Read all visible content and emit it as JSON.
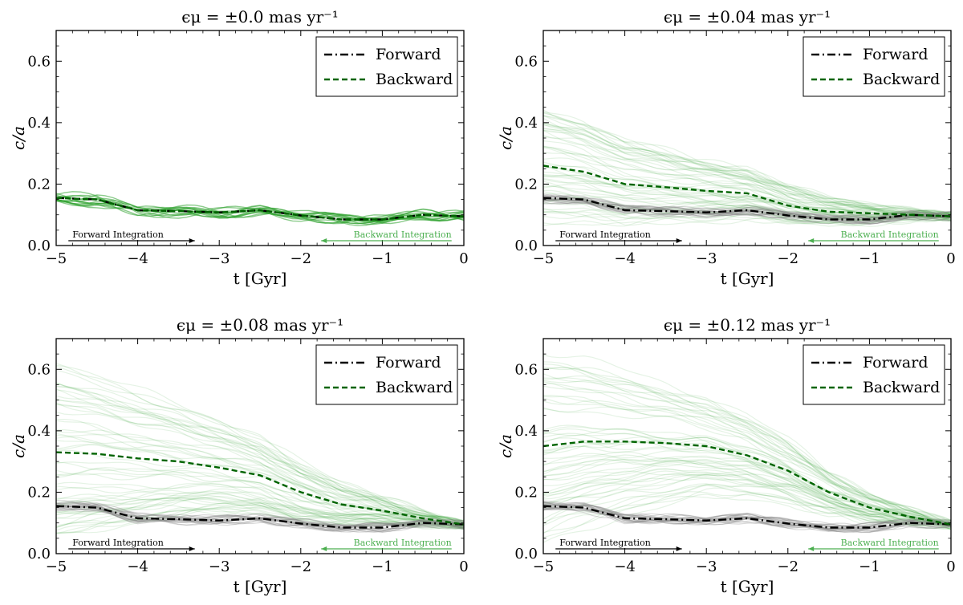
{
  "colors": {
    "forward": "#000000",
    "backward": "#006400",
    "forward_traces": "#808080",
    "backward_traces": "#2ca02c",
    "backward_annotation": "#4caf50"
  },
  "chart_data": [
    {
      "type": "line",
      "title": "ϵμ = ±0.0 mas yr⁻¹",
      "xlabel": "t [Gyr]",
      "ylabel": "c/a",
      "xlim": [
        -5,
        0
      ],
      "ylim": [
        0,
        0.7
      ],
      "xticks": [
        "−5",
        "−4",
        "−3",
        "−2",
        "−1",
        "0"
      ],
      "yticks": [
        "0.0",
        "0.2",
        "0.4",
        "0.6"
      ],
      "legend": {
        "position": "top-right",
        "entries": [
          "Forward",
          "Backward"
        ]
      },
      "annotations": {
        "forward": "Forward Integration",
        "backward": "Backward Integration"
      },
      "series": [
        {
          "name": "Forward",
          "style": "dashdot",
          "x": [
            -5,
            -4.5,
            -4,
            -3.5,
            -3,
            -2.5,
            -2,
            -1.5,
            -1,
            -0.5,
            0
          ],
          "y": [
            0.155,
            0.15,
            0.115,
            0.112,
            0.108,
            0.115,
            0.098,
            0.085,
            0.085,
            0.1,
            0.095
          ]
        },
        {
          "name": "Backward",
          "style": "dashed",
          "x": [
            -5,
            -4.5,
            -4,
            -3.5,
            -3,
            -2.5,
            -2,
            -1.5,
            -1,
            -0.5,
            0
          ],
          "y": [
            0.155,
            0.15,
            0.115,
            0.112,
            0.108,
            0.115,
            0.098,
            0.085,
            0.085,
            0.1,
            0.095
          ]
        }
      ]
    },
    {
      "type": "line",
      "title": "ϵμ = ±0.04 mas yr⁻¹",
      "xlabel": "t [Gyr]",
      "ylabel": "c/a",
      "xlim": [
        -5,
        0
      ],
      "ylim": [
        0,
        0.7
      ],
      "xticks": [
        "−5",
        "−4",
        "−3",
        "−2",
        "−1",
        "0"
      ],
      "yticks": [
        "0.0",
        "0.2",
        "0.4",
        "0.6"
      ],
      "legend": {
        "position": "top-right",
        "entries": [
          "Forward",
          "Backward"
        ]
      },
      "annotations": {
        "forward": "Forward Integration",
        "backward": "Backward Integration"
      },
      "series": [
        {
          "name": "Forward",
          "style": "dashdot",
          "x": [
            -5,
            -4.5,
            -4,
            -3.5,
            -3,
            -2.5,
            -2,
            -1.5,
            -1,
            -0.5,
            0
          ],
          "y": [
            0.155,
            0.15,
            0.115,
            0.112,
            0.108,
            0.115,
            0.098,
            0.085,
            0.085,
            0.1,
            0.095
          ]
        },
        {
          "name": "Backward",
          "style": "dashed",
          "x": [
            -5,
            -4.5,
            -4,
            -3.5,
            -3,
            -2.5,
            -2,
            -1.5,
            -1,
            -0.5,
            0
          ],
          "y": [
            0.26,
            0.24,
            0.2,
            0.19,
            0.178,
            0.17,
            0.13,
            0.11,
            0.105,
            0.1,
            0.095
          ]
        }
      ]
    },
    {
      "type": "line",
      "title": "ϵμ = ±0.08 mas yr⁻¹",
      "xlabel": "t [Gyr]",
      "ylabel": "c/a",
      "xlim": [
        -5,
        0
      ],
      "ylim": [
        0,
        0.7
      ],
      "xticks": [
        "−5",
        "−4",
        "−3",
        "−2",
        "−1",
        "0"
      ],
      "yticks": [
        "0.0",
        "0.2",
        "0.4",
        "0.6"
      ],
      "legend": {
        "position": "top-right",
        "entries": [
          "Forward",
          "Backward"
        ]
      },
      "annotations": {
        "forward": "Forward Integration",
        "backward": "Backward Integration"
      },
      "series": [
        {
          "name": "Forward",
          "style": "dashdot",
          "x": [
            -5,
            -4.5,
            -4,
            -3.5,
            -3,
            -2.5,
            -2,
            -1.5,
            -1,
            -0.5,
            0
          ],
          "y": [
            0.155,
            0.15,
            0.115,
            0.112,
            0.108,
            0.115,
            0.098,
            0.085,
            0.085,
            0.1,
            0.095
          ]
        },
        {
          "name": "Backward",
          "style": "dashed",
          "x": [
            -5,
            -4.5,
            -4,
            -3.5,
            -3,
            -2.5,
            -2,
            -1.5,
            -1,
            -0.5,
            0
          ],
          "y": [
            0.33,
            0.325,
            0.31,
            0.3,
            0.28,
            0.255,
            0.2,
            0.16,
            0.14,
            0.115,
            0.095
          ]
        }
      ]
    },
    {
      "type": "line",
      "title": "ϵμ = ±0.12 mas yr⁻¹",
      "xlabel": "t [Gyr]",
      "ylabel": "c/a",
      "xlim": [
        -5,
        0
      ],
      "ylim": [
        0,
        0.7
      ],
      "xticks": [
        "−5",
        "−4",
        "−3",
        "−2",
        "−1",
        "0"
      ],
      "yticks": [
        "0.0",
        "0.2",
        "0.4",
        "0.6"
      ],
      "legend": {
        "position": "top-right",
        "entries": [
          "Forward",
          "Backward"
        ]
      },
      "annotations": {
        "forward": "Forward Integration",
        "backward": "Backward Integration"
      },
      "series": [
        {
          "name": "Forward",
          "style": "dashdot",
          "x": [
            -5,
            -4.5,
            -4,
            -3.5,
            -3,
            -2.5,
            -2,
            -1.5,
            -1,
            -0.5,
            0
          ],
          "y": [
            0.155,
            0.15,
            0.115,
            0.112,
            0.108,
            0.115,
            0.098,
            0.085,
            0.085,
            0.1,
            0.095
          ]
        },
        {
          "name": "Backward",
          "style": "dashed",
          "x": [
            -5,
            -4.5,
            -4,
            -3.5,
            -3,
            -2.5,
            -2,
            -1.5,
            -1,
            -0.5,
            0
          ],
          "y": [
            0.35,
            0.365,
            0.365,
            0.36,
            0.35,
            0.32,
            0.27,
            0.2,
            0.15,
            0.12,
            0.095
          ]
        }
      ]
    }
  ]
}
